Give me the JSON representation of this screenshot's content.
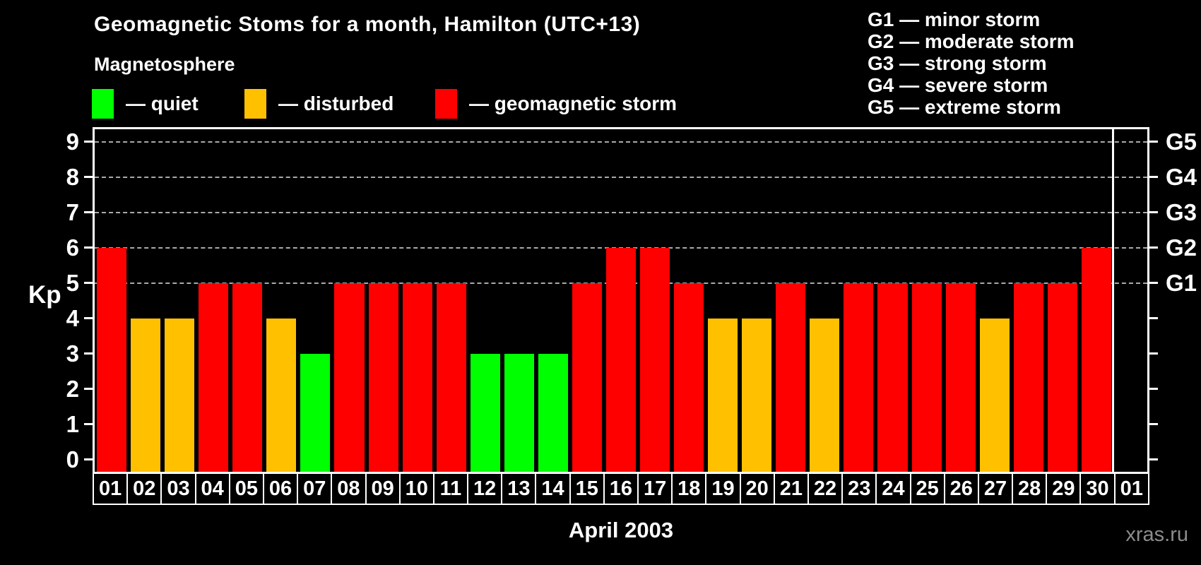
{
  "title": "Geomagnetic Stoms for a month, Hamilton (UTC+13)",
  "magnetosphere": {
    "heading": "Magnetosphere",
    "items": [
      {
        "status": "quiet",
        "label": "— quiet"
      },
      {
        "status": "disturbed",
        "label": "— disturbed"
      },
      {
        "status": "storm",
        "label": "— geomagnetic storm"
      }
    ]
  },
  "g_legend": [
    "G1 — minor storm",
    "G2 — moderate storm",
    "G3 — strong storm",
    "G4 — severe storm",
    "G5 — extreme storm"
  ],
  "colors": {
    "quiet": "#00ff00",
    "disturbed": "#ffc000",
    "storm": "#ff0000",
    "grid": "#aaaaaa",
    "axis": "#ffffff",
    "text": "#ffffff",
    "watermark": "#8c8c8c",
    "background": "#000000"
  },
  "watermark": "xras.ru",
  "chart_data": {
    "type": "bar",
    "title": "Geomagnetic Stoms for a month, Hamilton (UTC+13)",
    "xlabel": "April 2003",
    "ylabel": "Kp",
    "ylim": [
      -0.35,
      9.35
    ],
    "y_ticks": [
      0,
      1,
      2,
      3,
      4,
      5,
      6,
      7,
      8,
      9
    ],
    "grid_levels": [
      5,
      6,
      7,
      8,
      9
    ],
    "right_axis_labels": [
      {
        "kp": 5,
        "label": "G1"
      },
      {
        "kp": 6,
        "label": "G2"
      },
      {
        "kp": 7,
        "label": "G3"
      },
      {
        "kp": 8,
        "label": "G4"
      },
      {
        "kp": 9,
        "label": "G5"
      }
    ],
    "categories": [
      "01",
      "02",
      "03",
      "04",
      "05",
      "06",
      "07",
      "08",
      "09",
      "10",
      "11",
      "12",
      "13",
      "14",
      "15",
      "16",
      "17",
      "18",
      "19",
      "20",
      "21",
      "22",
      "23",
      "24",
      "25",
      "26",
      "27",
      "28",
      "29",
      "30",
      "01"
    ],
    "values": [
      6,
      4,
      4,
      5,
      5,
      4,
      3,
      5,
      5,
      5,
      5,
      3,
      3,
      3,
      5,
      6,
      6,
      5,
      4,
      4,
      5,
      4,
      5,
      5,
      5,
      5,
      4,
      5,
      5,
      6,
      null
    ],
    "statuses": [
      "storm",
      "disturbed",
      "disturbed",
      "storm",
      "storm",
      "disturbed",
      "quiet",
      "storm",
      "storm",
      "storm",
      "storm",
      "quiet",
      "quiet",
      "quiet",
      "storm",
      "storm",
      "storm",
      "storm",
      "disturbed",
      "disturbed",
      "storm",
      "disturbed",
      "storm",
      "storm",
      "storm",
      "storm",
      "disturbed",
      "storm",
      "storm",
      "storm",
      null
    ],
    "month_separator_after_index": 29,
    "legend_position": "top",
    "grid": "dashed-horizontal-on-storm-levels-only"
  }
}
